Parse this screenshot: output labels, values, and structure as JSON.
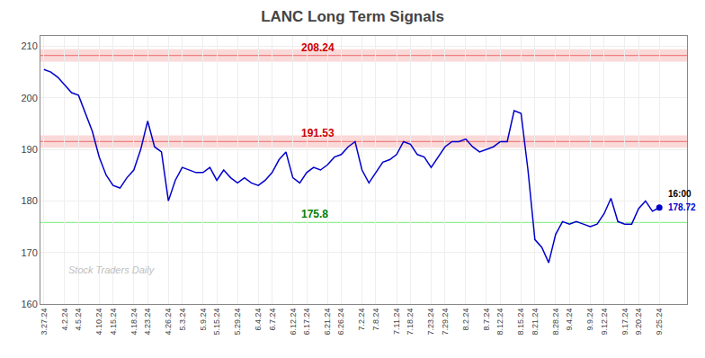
{
  "chart_data": {
    "type": "line",
    "title": "LANC Long Term Signals",
    "watermark": "Stock Traders Daily",
    "color": "#0000cc",
    "categories": [
      "3.27.24",
      null,
      null,
      "4.2.24",
      null,
      "4.5.24",
      null,
      null,
      "4.10.24",
      null,
      "4.15.24",
      null,
      null,
      "4.18.24",
      null,
      "4.23.24",
      null,
      null,
      "4.26.24",
      null,
      "5.3.24",
      null,
      null,
      "5.9.24",
      null,
      "5.15.24",
      null,
      null,
      "5.29.24",
      null,
      null,
      "6.4.24",
      null,
      "6.7.24",
      null,
      null,
      "6.12.24",
      null,
      "6.17.24",
      null,
      null,
      "6.21.24",
      null,
      "6.26.24",
      null,
      null,
      "7.2.24",
      null,
      "7.8.24",
      null,
      null,
      "7.11.24",
      null,
      "7.18.24",
      null,
      null,
      "7.23.24",
      null,
      "7.29.24",
      null,
      null,
      "8.2.24",
      null,
      null,
      "8.7.24",
      null,
      "8.12.24",
      null,
      null,
      "8.15.24",
      null,
      "8.21.24",
      null,
      null,
      "8.28.24",
      null,
      "9.4.24",
      null,
      null,
      "9.9.24",
      null,
      "9.12.24",
      null,
      null,
      "9.17.24",
      null,
      "9.20.24",
      null,
      null,
      "9.25.24"
    ],
    "values": [
      205.5,
      205.0,
      204.0,
      202.5,
      201.0,
      200.5,
      197.0,
      193.5,
      188.5,
      185.0,
      183.0,
      182.5,
      184.5,
      186.0,
      190.0,
      195.5,
      190.5,
      189.5,
      180.0,
      184.0,
      186.5,
      186.0,
      185.5,
      185.5,
      186.5,
      184.0,
      186.0,
      184.5,
      183.5,
      184.5,
      183.5,
      183.0,
      184.0,
      185.5,
      188.0,
      189.5,
      184.5,
      183.5,
      185.5,
      186.5,
      186.0,
      187.0,
      188.5,
      189.0,
      190.5,
      191.5,
      186.0,
      183.5,
      185.5,
      187.5,
      188.0,
      189.0,
      191.5,
      191.0,
      189.0,
      188.5,
      186.5,
      188.5,
      190.5,
      191.5,
      191.5,
      192.0,
      190.5,
      189.5,
      190.0,
      190.5,
      191.5,
      191.5,
      197.5,
      197.0,
      186.0,
      172.5,
      171.0,
      168.0,
      173.5,
      176.0,
      175.5,
      176.0,
      175.5,
      175.0,
      175.5,
      177.5,
      180.5,
      176.0,
      175.5,
      175.5,
      178.5,
      180.0,
      178.0,
      178.72
    ],
    "hlines": [
      {
        "value": 208.24,
        "color": "#f08080",
        "label_color": "#cc0000",
        "band": [
          207.04,
          209.44
        ]
      },
      {
        "value": 191.53,
        "color": "#f08080",
        "label_color": "#cc0000",
        "band": [
          190.33,
          192.73
        ]
      },
      {
        "value": 175.8,
        "color": "#90ee90",
        "label_color": "#008000"
      }
    ],
    "last_point": {
      "time": "16:00",
      "value": 178.72
    },
    "ylim": [
      160,
      212
    ],
    "yticks": [
      160,
      170,
      180,
      190,
      200,
      210
    ],
    "grid": true
  }
}
